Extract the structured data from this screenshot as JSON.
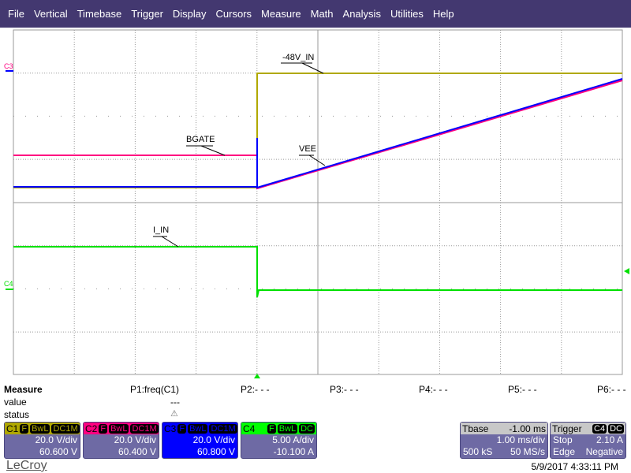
{
  "menu": [
    "File",
    "Vertical",
    "Timebase",
    "Trigger",
    "Display",
    "Cursors",
    "Measure",
    "Math",
    "Analysis",
    "Utilities",
    "Help"
  ],
  "traces": {
    "c1_label": "-48V_IN",
    "c2_label": "BGATE",
    "c3_label": "VEE",
    "c4_label": "I_IN",
    "c3_marker": "C3",
    "c4_marker": "C4"
  },
  "colors": {
    "c1": "#b0a800",
    "c2": "#ff0080",
    "c3": "#0000ff",
    "c4": "#00e000",
    "menubar": "#433870",
    "panel": "#6e6aa4"
  },
  "measure": {
    "title": "Measure",
    "row_value": "value",
    "row_status": "status",
    "params": [
      "P1:freq(C1)",
      "P2:- - -",
      "P3:- - -",
      "P4:- - -",
      "P5:- - -",
      "P6:- - -"
    ],
    "p1_value": "---",
    "p1_status_icon": "warning-icon"
  },
  "channels": [
    {
      "name": "C1",
      "tags": [
        "F",
        "BwL",
        "DC1M"
      ],
      "scale": "20.0 V/div",
      "offset": "60.600 V",
      "color": "#b0a800",
      "text": "#000"
    },
    {
      "name": "C2",
      "tags": [
        "F",
        "BwL",
        "DC1M"
      ],
      "scale": "20.0 V/div",
      "offset": "60.400 V",
      "color": "#ff0080",
      "text": "#000"
    },
    {
      "name": "C3",
      "tags": [
        "F",
        "BwL",
        "DC1M"
      ],
      "scale": "20.0 V/div",
      "offset": "60.800 V",
      "color": "#0000ff",
      "text": "#000"
    },
    {
      "name": "C4",
      "tags": [
        "F",
        "BwL",
        "DC"
      ],
      "scale": "5.00 A/div",
      "offset": "-10.100 A",
      "color": "#00ff00",
      "text": "#000"
    }
  ],
  "timebase": {
    "label": "Tbase",
    "delay": "-1.00 ms",
    "scale": "1.00 ms/div",
    "samples": "500 kS",
    "rate": "50 MS/s"
  },
  "trigger": {
    "label": "Trigger",
    "source": "C4",
    "coupling": "DC",
    "mode": "Stop",
    "level": "2.10 A",
    "type": "Edge",
    "slope": "Negative"
  },
  "footer": {
    "brand": "LeCroy",
    "datetime": "5/9/2017 4:33:11 PM"
  }
}
